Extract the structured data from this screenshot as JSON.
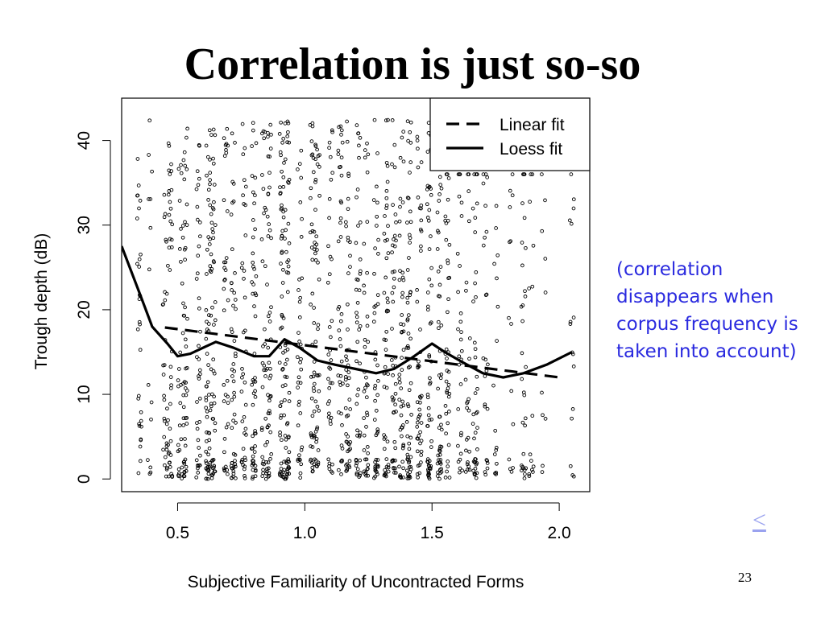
{
  "slide": {
    "title": "Correlation is just so-so",
    "note": "(correlation disappears when corpus frequency is taken into account)",
    "nav_link": "<",
    "slide_number": "23"
  },
  "chart_data": {
    "type": "scatter",
    "title": "",
    "xlabel": "Subjective Familiarity of Uncontracted Forms",
    "ylabel": "Trough depth (dB)",
    "xlim": [
      0.28,
      2.12
    ],
    "ylim": [
      -1.5,
      45
    ],
    "xticks": [
      0.5,
      1.0,
      1.5,
      2.0
    ],
    "xtick_labels": [
      "0.5",
      "1.0",
      "1.5",
      "2.0"
    ],
    "yticks": [
      0,
      10,
      20,
      30,
      40
    ],
    "ytick_labels": [
      "0",
      "10",
      "20",
      "30",
      "40"
    ],
    "grid": false,
    "legend": {
      "position": "top-right",
      "entries": [
        "Linear fit",
        "Loess fit"
      ]
    },
    "marker_color": "#000000",
    "point_columns": [
      {
        "x": 0.35,
        "n": 30
      },
      {
        "x": 0.39,
        "n": 14
      },
      {
        "x": 0.45,
        "n": 30
      },
      {
        "x": 0.47,
        "n": 40
      },
      {
        "x": 0.51,
        "n": 26
      },
      {
        "x": 0.53,
        "n": 50
      },
      {
        "x": 0.58,
        "n": 40
      },
      {
        "x": 0.62,
        "n": 60
      },
      {
        "x": 0.64,
        "n": 50
      },
      {
        "x": 0.69,
        "n": 36
      },
      {
        "x": 0.72,
        "n": 50
      },
      {
        "x": 0.76,
        "n": 40
      },
      {
        "x": 0.8,
        "n": 56
      },
      {
        "x": 0.84,
        "n": 36
      },
      {
        "x": 0.86,
        "n": 50
      },
      {
        "x": 0.91,
        "n": 60
      },
      {
        "x": 0.93,
        "n": 60
      },
      {
        "x": 0.98,
        "n": 40
      },
      {
        "x": 1.03,
        "n": 50
      },
      {
        "x": 1.05,
        "n": 40
      },
      {
        "x": 1.1,
        "n": 40
      },
      {
        "x": 1.14,
        "n": 40
      },
      {
        "x": 1.17,
        "n": 50
      },
      {
        "x": 1.21,
        "n": 46
      },
      {
        "x": 1.24,
        "n": 40
      },
      {
        "x": 1.28,
        "n": 46
      },
      {
        "x": 1.32,
        "n": 50
      },
      {
        "x": 1.35,
        "n": 46
      },
      {
        "x": 1.38,
        "n": 50
      },
      {
        "x": 1.41,
        "n": 60
      },
      {
        "x": 1.45,
        "n": 50
      },
      {
        "x": 1.49,
        "n": 60
      },
      {
        "x": 1.53,
        "n": 50
      },
      {
        "x": 1.56,
        "n": 40
      },
      {
        "x": 1.61,
        "n": 30
      },
      {
        "x": 1.64,
        "n": 24
      },
      {
        "x": 1.67,
        "n": 40
      },
      {
        "x": 1.71,
        "n": 24
      },
      {
        "x": 1.75,
        "n": 16
      },
      {
        "x": 1.81,
        "n": 14
      },
      {
        "x": 1.86,
        "n": 30
      },
      {
        "x": 1.89,
        "n": 14
      },
      {
        "x": 1.94,
        "n": 10
      },
      {
        "x": 2.05,
        "n": 16
      }
    ],
    "series": [
      {
        "name": "Linear fit",
        "style": "dashed",
        "x": [
          0.45,
          2.0
        ],
        "y": [
          17.9,
          12.0
        ]
      },
      {
        "name": "Loess fit",
        "style": "solid",
        "x": [
          0.28,
          0.35,
          0.4,
          0.46,
          0.5,
          0.55,
          0.6,
          0.65,
          0.72,
          0.8,
          0.86,
          0.92,
          0.98,
          1.05,
          1.12,
          1.2,
          1.28,
          1.35,
          1.42,
          1.5,
          1.55,
          1.62,
          1.7,
          1.78,
          1.86,
          1.95,
          2.05
        ],
        "y": [
          27.5,
          22.0,
          18.0,
          16.0,
          14.5,
          14.8,
          15.5,
          16.2,
          15.5,
          14.5,
          14.5,
          16.5,
          15.5,
          14.0,
          13.5,
          13.0,
          12.5,
          13.0,
          14.3,
          16.0,
          15.0,
          13.8,
          12.5,
          12.0,
          12.5,
          13.5,
          15.0
        ]
      }
    ],
    "notes_unplotted": "Legend box covers the upper-right part of the panel; points are approximated positions of the dense scatter."
  }
}
